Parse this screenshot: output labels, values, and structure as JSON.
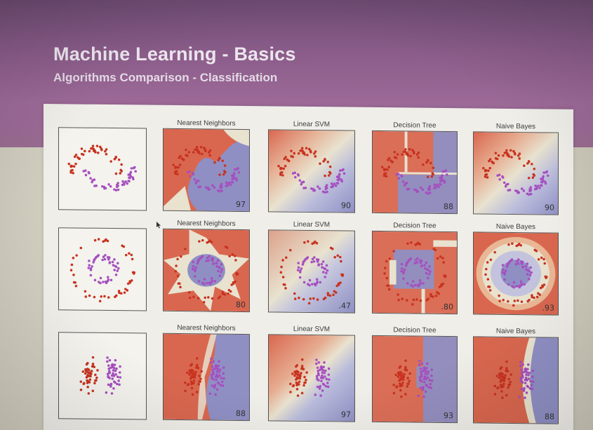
{
  "slide": {
    "title": "Machine Learning - Basics",
    "subtitle": "Algorithms Comparison - Classification"
  },
  "colors": {
    "band": "#9a6a95",
    "red_region": "#d9674f",
    "blue_region": "#8f8fc4",
    "light_region": "#e8e2cf",
    "red_point": "#c8321f",
    "blue_point": "#a64fc0"
  },
  "grid": {
    "rows": [
      {
        "name": "moons",
        "cells": [
          {
            "title": "",
            "score": "",
            "kind": "input"
          },
          {
            "title": "Nearest Neighbors",
            "score": "97",
            "kind": "knn"
          },
          {
            "title": "Linear SVM",
            "score": "90",
            "kind": "svm"
          },
          {
            "title": "Decision Tree",
            "score": "88",
            "kind": "tree"
          },
          {
            "title": "Naive Bayes",
            "score": "90",
            "kind": "nb"
          }
        ]
      },
      {
        "name": "circles",
        "cells": [
          {
            "title": "",
            "score": "",
            "kind": "input"
          },
          {
            "title": "Nearest Neighbors",
            "score": "80",
            "kind": "knn"
          },
          {
            "title": "Linear SVM",
            "score": ".47",
            "kind": "svm"
          },
          {
            "title": "Decision Tree",
            "score": ".80",
            "kind": "tree"
          },
          {
            "title": "Naive Bayes",
            "score": ".93",
            "kind": "nb"
          }
        ]
      },
      {
        "name": "linear",
        "cells": [
          {
            "title": "",
            "score": "",
            "kind": "input"
          },
          {
            "title": "Nearest Neighbors",
            "score": "88",
            "kind": "knn"
          },
          {
            "title": "Linear SVM",
            "score": "97",
            "kind": "svm"
          },
          {
            "title": "Decision Tree",
            "score": "93",
            "kind": "tree"
          },
          {
            "title": "Naive Bayes",
            "score": "88",
            "kind": "nb"
          }
        ]
      }
    ]
  }
}
